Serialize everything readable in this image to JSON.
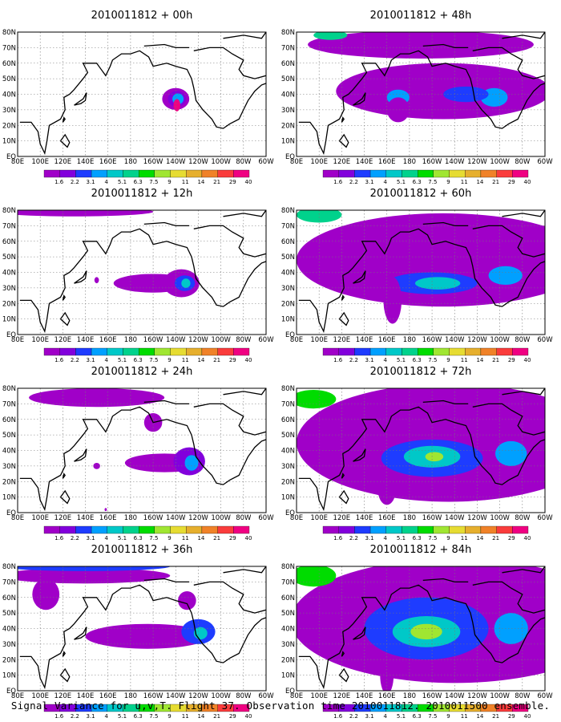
{
  "figure": {
    "caption": "Signal Variance for u,v,T. Flight 37. Observation time 2010011812. 2010011500 ensemble."
  },
  "chart_data": [
    {
      "type": "heatmap",
      "title": "2010011812 + 00h",
      "x_ticks": [
        "80E",
        "100E",
        "120E",
        "140E",
        "160E",
        "180",
        "160W",
        "140W",
        "120W",
        "100W",
        "80W",
        "60W"
      ],
      "y_ticks": [
        "EQ",
        "10N",
        "20N",
        "30N",
        "40N",
        "50N",
        "60N",
        "70N",
        "80N"
      ],
      "legend_levels": [
        "1.6",
        "2.2",
        "3.1",
        "4",
        "5.1",
        "6.3",
        "7.5",
        "9",
        "11",
        "14",
        "21",
        "29",
        "40"
      ],
      "legend_colors": [
        "#a000c8",
        "#8200dc",
        "#1e3cff",
        "#00a0ff",
        "#00c8c8",
        "#00d28c",
        "#00dc00",
        "#a0e632",
        "#e6dc32",
        "#e6af2d",
        "#f08228",
        "#fa3c3c",
        "#f00082"
      ],
      "blobs": [
        {
          "lon": 220,
          "lat": 37,
          "rx": 12,
          "ry": 7,
          "level": 0
        },
        {
          "lon": 221,
          "lat": 37,
          "rx": 8,
          "ry": 5,
          "level": 1
        },
        {
          "lon": 222,
          "lat": 37,
          "rx": 5,
          "ry": 3.5,
          "level": 3
        },
        {
          "lon": 221,
          "lat": 33,
          "rx": 3,
          "ry": 4,
          "level": 12
        }
      ]
    },
    {
      "type": "heatmap",
      "title": "2010011812 + 12h",
      "x_ticks": [
        "80E",
        "100E",
        "120E",
        "140E",
        "160E",
        "180",
        "160W",
        "140W",
        "120W",
        "100W",
        "80W",
        "60W"
      ],
      "y_ticks": [
        "EQ",
        "10N",
        "20N",
        "30N",
        "40N",
        "50N",
        "60N",
        "70N",
        "80N"
      ],
      "legend_levels": [
        "1.6",
        "2.2",
        "3.1",
        "4",
        "5.1",
        "6.3",
        "7.5",
        "9",
        "11",
        "14",
        "21",
        "29",
        "40"
      ],
      "legend_colors": [
        "#a000c8",
        "#8200dc",
        "#1e3cff",
        "#00a0ff",
        "#00c8c8",
        "#00d28c",
        "#00dc00",
        "#a0e632",
        "#e6dc32",
        "#e6af2d",
        "#f08228",
        "#fa3c3c",
        "#f00082"
      ],
      "blobs": [
        {
          "lon": 200,
          "lat": 33,
          "rx": 35,
          "ry": 6,
          "level": 0
        },
        {
          "lon": 225,
          "lat": 33,
          "rx": 16,
          "ry": 9,
          "level": 0
        },
        {
          "lon": 228,
          "lat": 33,
          "rx": 9,
          "ry": 5,
          "level": 2
        },
        {
          "lon": 229,
          "lat": 33,
          "rx": 4,
          "ry": 3,
          "level": 4
        },
        {
          "lon": 130,
          "lat": 79,
          "rx": 70,
          "ry": 3,
          "level": 0
        },
        {
          "lon": 150,
          "lat": 35,
          "rx": 2,
          "ry": 2,
          "level": 0
        }
      ]
    },
    {
      "type": "heatmap",
      "title": "2010011812 + 24h",
      "x_ticks": [
        "80E",
        "100E",
        "120E",
        "140E",
        "160E",
        "180",
        "160W",
        "140W",
        "120W",
        "100W",
        "80W",
        "60W"
      ],
      "y_ticks": [
        "EQ",
        "10N",
        "20N",
        "30N",
        "40N",
        "50N",
        "60N",
        "70N",
        "80N"
      ],
      "legend_levels": [
        "1.6",
        "2.2",
        "3.1",
        "4",
        "5.1",
        "6.3",
        "7.5",
        "9",
        "11",
        "14",
        "21",
        "29",
        "40"
      ],
      "legend_colors": [
        "#a000c8",
        "#8200dc",
        "#1e3cff",
        "#00a0ff",
        "#00c8c8",
        "#00d28c",
        "#00dc00",
        "#a0e632",
        "#e6dc32",
        "#e6af2d",
        "#f08228",
        "#fa3c3c",
        "#f00082"
      ],
      "blobs": [
        {
          "lon": 210,
          "lat": 32,
          "rx": 35,
          "ry": 6,
          "level": 0
        },
        {
          "lon": 232,
          "lat": 33,
          "rx": 14,
          "ry": 9,
          "level": 1
        },
        {
          "lon": 234,
          "lat": 32,
          "rx": 6,
          "ry": 5,
          "level": 3
        },
        {
          "lon": 150,
          "lat": 74,
          "rx": 60,
          "ry": 6,
          "level": 0
        },
        {
          "lon": 200,
          "lat": 58,
          "rx": 8,
          "ry": 6,
          "level": 0
        },
        {
          "lon": 150,
          "lat": 30,
          "rx": 3,
          "ry": 2,
          "level": 0
        },
        {
          "lon": 158,
          "lat": 2,
          "rx": 1,
          "ry": 1,
          "level": 0
        }
      ]
    },
    {
      "type": "heatmap",
      "title": "2010011812 + 36h",
      "x_ticks": [
        "80E",
        "100E",
        "120E",
        "140E",
        "160E",
        "180",
        "160W",
        "140W",
        "120W",
        "100W",
        "80W",
        "60W"
      ],
      "y_ticks": [
        "EQ",
        "10N",
        "20N",
        "30N",
        "40N",
        "50N",
        "60N",
        "70N",
        "80N"
      ],
      "legend_levels": [
        "1.6",
        "2.2",
        "3.1",
        "4",
        "5.1",
        "6.3",
        "7.5",
        "9",
        "11",
        "14",
        "21",
        "29",
        "40"
      ],
      "legend_colors": [
        "#a000c8",
        "#8200dc",
        "#1e3cff",
        "#00a0ff",
        "#00c8c8",
        "#00d28c",
        "#00dc00",
        "#a0e632",
        "#e6dc32",
        "#e6af2d",
        "#f08228",
        "#fa3c3c",
        "#f00082"
      ],
      "blobs": [
        {
          "lon": 195,
          "lat": 35,
          "rx": 55,
          "ry": 8,
          "level": 0
        },
        {
          "lon": 240,
          "lat": 38,
          "rx": 15,
          "ry": 8,
          "level": 2
        },
        {
          "lon": 242,
          "lat": 37,
          "rx": 6,
          "ry": 4,
          "level": 4
        },
        {
          "lon": 140,
          "lat": 74,
          "rx": 75,
          "ry": 5,
          "level": 0
        },
        {
          "lon": 140,
          "lat": 80,
          "rx": 75,
          "ry": 3,
          "level": 2
        },
        {
          "lon": 105,
          "lat": 62,
          "rx": 12,
          "ry": 10,
          "level": 0
        },
        {
          "lon": 230,
          "lat": 58,
          "rx": 8,
          "ry": 6,
          "level": 0
        }
      ]
    },
    {
      "type": "heatmap",
      "title": "2010011812 + 48h",
      "x_ticks": [
        "80E",
        "100E",
        "120E",
        "140E",
        "160E",
        "180",
        "160W",
        "140W",
        "120W",
        "100W",
        "80W",
        "60W"
      ],
      "y_ticks": [
        "EQ",
        "10N",
        "20N",
        "30N",
        "40N",
        "50N",
        "60N",
        "70N",
        "80N"
      ],
      "legend_levels": [
        "1.6",
        "2.2",
        "3.1",
        "4",
        "5.1",
        "6.3",
        "7.5",
        "9",
        "11",
        "14",
        "21",
        "29",
        "40"
      ],
      "legend_colors": [
        "#a000c8",
        "#8200dc",
        "#1e3cff",
        "#00a0ff",
        "#00c8c8",
        "#00d28c",
        "#00dc00",
        "#a0e632",
        "#e6dc32",
        "#e6af2d",
        "#f08228",
        "#fa3c3c",
        "#f00082"
      ],
      "blobs": [
        {
          "lon": 210,
          "lat": 42,
          "rx": 95,
          "ry": 18,
          "level": 0
        },
        {
          "lon": 190,
          "lat": 72,
          "rx": 100,
          "ry": 9,
          "level": 0
        },
        {
          "lon": 170,
          "lat": 38,
          "rx": 10,
          "ry": 5,
          "level": 3
        },
        {
          "lon": 255,
          "lat": 38,
          "rx": 12,
          "ry": 6,
          "level": 3
        },
        {
          "lon": 230,
          "lat": 40,
          "rx": 20,
          "ry": 5,
          "level": 2
        },
        {
          "lon": 110,
          "lat": 78,
          "rx": 15,
          "ry": 3,
          "level": 5
        },
        {
          "lon": 170,
          "lat": 30,
          "rx": 10,
          "ry": 8,
          "level": 0
        }
      ]
    },
    {
      "type": "heatmap",
      "title": "2010011812 + 60h",
      "x_ticks": [
        "80E",
        "100E",
        "120E",
        "140E",
        "160E",
        "180",
        "160W",
        "140W",
        "120W",
        "100W",
        "80W",
        "60W"
      ],
      "y_ticks": [
        "EQ",
        "10N",
        "20N",
        "30N",
        "40N",
        "50N",
        "60N",
        "70N",
        "80N"
      ],
      "legend_levels": [
        "1.6",
        "2.2",
        "3.1",
        "4",
        "5.1",
        "6.3",
        "7.5",
        "9",
        "11",
        "14",
        "21",
        "29",
        "40"
      ],
      "legend_colors": [
        "#a000c8",
        "#8200dc",
        "#1e3cff",
        "#00a0ff",
        "#00c8c8",
        "#00d28c",
        "#00dc00",
        "#a0e632",
        "#e6dc32",
        "#e6af2d",
        "#f08228",
        "#fa3c3c",
        "#f00082"
      ],
      "blobs": [
        {
          "lon": 210,
          "lat": 48,
          "rx": 130,
          "ry": 30,
          "level": 0
        },
        {
          "lon": 200,
          "lat": 33,
          "rx": 40,
          "ry": 7,
          "level": 2
        },
        {
          "lon": 205,
          "lat": 33,
          "rx": 20,
          "ry": 4,
          "level": 4
        },
        {
          "lon": 265,
          "lat": 38,
          "rx": 15,
          "ry": 6,
          "level": 3
        },
        {
          "lon": 100,
          "lat": 77,
          "rx": 20,
          "ry": 5,
          "level": 5
        },
        {
          "lon": 165,
          "lat": 22,
          "rx": 8,
          "ry": 15,
          "level": 0
        }
      ]
    },
    {
      "type": "heatmap",
      "title": "2010011812 + 72h",
      "x_ticks": [
        "80E",
        "100E",
        "120E",
        "140E",
        "160E",
        "180",
        "160W",
        "140W",
        "120W",
        "100W",
        "80W",
        "60W"
      ],
      "y_ticks": [
        "EQ",
        "10N",
        "20N",
        "30N",
        "40N",
        "50N",
        "60N",
        "70N",
        "80N"
      ],
      "legend_levels": [
        "1.6",
        "2.2",
        "3.1",
        "4",
        "5.1",
        "6.3",
        "7.5",
        "9",
        "11",
        "14",
        "21",
        "29",
        "40"
      ],
      "legend_colors": [
        "#a000c8",
        "#8200dc",
        "#1e3cff",
        "#00a0ff",
        "#00c8c8",
        "#00d28c",
        "#00dc00",
        "#a0e632",
        "#e6dc32",
        "#e6af2d",
        "#f08228",
        "#fa3c3c",
        "#f00082"
      ],
      "blobs": [
        {
          "lon": 215,
          "lat": 45,
          "rx": 135,
          "ry": 38,
          "level": 0
        },
        {
          "lon": 200,
          "lat": 35,
          "rx": 45,
          "ry": 12,
          "level": 2
        },
        {
          "lon": 200,
          "lat": 36,
          "rx": 25,
          "ry": 7,
          "level": 4
        },
        {
          "lon": 202,
          "lat": 36,
          "rx": 8,
          "ry": 3,
          "level": 7
        },
        {
          "lon": 270,
          "lat": 38,
          "rx": 14,
          "ry": 8,
          "level": 3
        },
        {
          "lon": 95,
          "lat": 73,
          "rx": 20,
          "ry": 6,
          "level": 6
        },
        {
          "lon": 160,
          "lat": 15,
          "rx": 8,
          "ry": 10,
          "level": 0
        }
      ]
    },
    {
      "type": "heatmap",
      "title": "2010011812 + 84h",
      "x_ticks": [
        "80E",
        "100E",
        "120E",
        "140E",
        "160E",
        "180",
        "160W",
        "140W",
        "120W",
        "100W",
        "80W",
        "60W"
      ],
      "y_ticks": [
        "EQ",
        "10N",
        "20N",
        "30N",
        "40N",
        "50N",
        "60N",
        "70N",
        "80N"
      ],
      "legend_levels": [
        "1.6",
        "2.2",
        "3.1",
        "4",
        "5.1",
        "6.3",
        "7.5",
        "9",
        "11",
        "14",
        "21",
        "29",
        "40"
      ],
      "legend_colors": [
        "#a000c8",
        "#8200dc",
        "#1e3cff",
        "#00a0ff",
        "#00c8c8",
        "#00d28c",
        "#00dc00",
        "#a0e632",
        "#e6dc32",
        "#e6af2d",
        "#f08228",
        "#fa3c3c",
        "#f00082"
      ],
      "blobs": [
        {
          "lon": 220,
          "lat": 45,
          "rx": 145,
          "ry": 40,
          "level": 0
        },
        {
          "lon": 195,
          "lat": 40,
          "rx": 55,
          "ry": 20,
          "level": 2
        },
        {
          "lon": 195,
          "lat": 38,
          "rx": 30,
          "ry": 10,
          "level": 4
        },
        {
          "lon": 195,
          "lat": 38,
          "rx": 14,
          "ry": 5,
          "level": 7
        },
        {
          "lon": 270,
          "lat": 40,
          "rx": 15,
          "ry": 10,
          "level": 3
        },
        {
          "lon": 95,
          "lat": 74,
          "rx": 20,
          "ry": 7,
          "level": 6
        },
        {
          "lon": 160,
          "lat": 10,
          "rx": 6,
          "ry": 12,
          "level": 0
        }
      ]
    }
  ]
}
